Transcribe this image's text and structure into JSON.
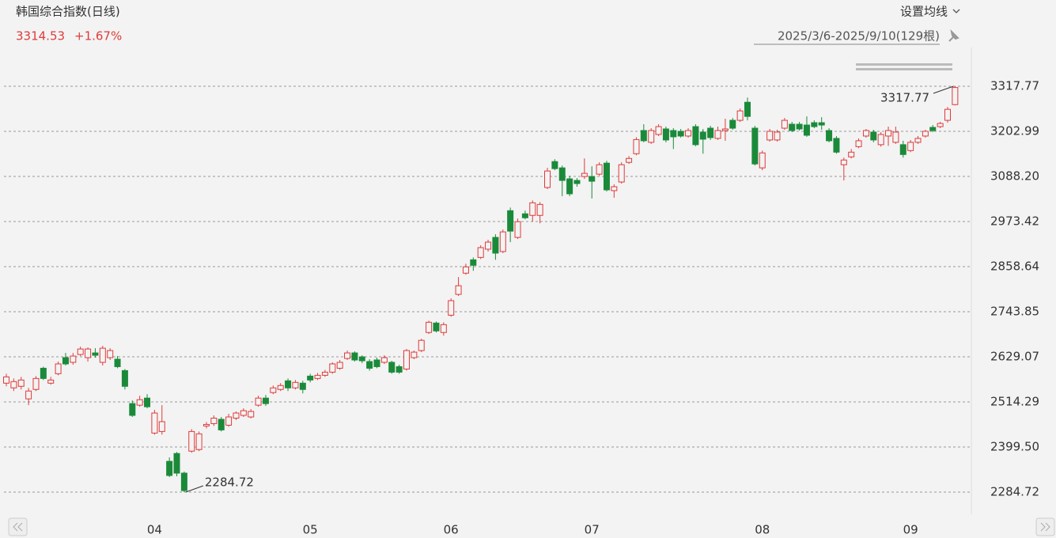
{
  "chart_data": {
    "type": "candlestick",
    "title": "韩国综合指数(日线)",
    "change": "+1.67%",
    "ma_setting": "设置均线",
    "range": "2025/3/6-2025/9/10(129根)",
    "up_color": "#e03a3a",
    "down_color": "#1a8a3a",
    "grid": true,
    "categories": [
      null,
      null,
      null,
      null,
      null,
      null,
      null,
      null,
      null,
      null,
      null,
      null,
      null,
      null,
      null,
      null,
      null,
      null,
      null,
      null,
      "04",
      null,
      null,
      null,
      null,
      null,
      null,
      null,
      null,
      null,
      null,
      null,
      null,
      null,
      null,
      null,
      null,
      null,
      null,
      null,
      null,
      "05",
      null,
      null,
      null,
      null,
      null,
      null,
      null,
      null,
      null,
      null,
      null,
      null,
      null,
      null,
      null,
      null,
      null,
      null,
      "06",
      null,
      null,
      null,
      null,
      null,
      null,
      null,
      null,
      null,
      null,
      null,
      null,
      null,
      null,
      null,
      null,
      null,
      null,
      "07",
      null,
      null,
      null,
      null,
      null,
      null,
      null,
      null,
      null,
      null,
      null,
      null,
      null,
      null,
      null,
      null,
      null,
      null,
      null,
      null,
      null,
      null,
      "08",
      null,
      null,
      null,
      null,
      null,
      null,
      null,
      null,
      null,
      null,
      null,
      null,
      null,
      null,
      null,
      null,
      null,
      null,
      null,
      "09",
      null,
      null,
      null,
      null,
      null,
      null
    ],
    "open": [
      2562,
      2550,
      2554,
      2522,
      2546,
      2600,
      2562,
      2586,
      2627,
      2615,
      2635,
      2627,
      2639,
      2615,
      2627,
      2623,
      2594,
      2510,
      2506,
      2524,
      2435,
      2439,
      2363,
      2383,
      2333,
      2389,
      2393,
      2453,
      2459,
      2470,
      2455,
      2473,
      2480,
      2476,
      2506,
      2524,
      2538,
      2546,
      2568,
      2550,
      2562,
      2580,
      2574,
      2582,
      2590,
      2600,
      2625,
      2639,
      2629,
      2617,
      2621,
      2615,
      2615,
      2604,
      2598,
      2627,
      2645,
      2691,
      2715,
      2691,
      2735,
      2788,
      2842,
      2876,
      2882,
      2903,
      2933,
      2897,
      3001,
      2933,
      2993,
      2989,
      2989,
      3060,
      3126,
      3110,
      3082,
      3078,
      3088,
      3088,
      3094,
      3122,
      3052,
      3074,
      3124,
      3146,
      3205,
      3175,
      3195,
      3209,
      3205,
      3203,
      3191,
      3215,
      3201,
      3211,
      3185,
      3205,
      3231,
      3231,
      3277,
      3211,
      3110,
      3181,
      3181,
      3211,
      3221,
      3221,
      3219,
      3225,
      3225,
      3205,
      3185,
      3118,
      3138,
      3164,
      3191,
      3201,
      3169,
      3191,
      3175,
      3169,
      3154,
      3175,
      3191,
      3213,
      3215,
      3231,
      3271
    ],
    "high": [
      2586,
      2574,
      2578,
      2550,
      2580,
      2604,
      2578,
      2617,
      2639,
      2639,
      2655,
      2653,
      2651,
      2657,
      2651,
      2631,
      2598,
      2518,
      2530,
      2534,
      2494,
      2506,
      2373,
      2387,
      2337,
      2445,
      2439,
      2463,
      2480,
      2476,
      2484,
      2490,
      2498,
      2496,
      2530,
      2532,
      2556,
      2562,
      2574,
      2570,
      2568,
      2586,
      2588,
      2596,
      2615,
      2621,
      2645,
      2643,
      2633,
      2623,
      2627,
      2633,
      2619,
      2609,
      2649,
      2645,
      2675,
      2721,
      2719,
      2717,
      2778,
      2832,
      2866,
      2882,
      2913,
      2927,
      2941,
      2953,
      3009,
      2981,
      3001,
      3027,
      3023,
      3110,
      3132,
      3116,
      3090,
      3084,
      3134,
      3114,
      3124,
      3128,
      3068,
      3124,
      3140,
      3188,
      3221,
      3211,
      3221,
      3215,
      3211,
      3209,
      3211,
      3221,
      3209,
      3217,
      3215,
      3235,
      3237,
      3261,
      3289,
      3217,
      3154,
      3209,
      3207,
      3237,
      3227,
      3227,
      3241,
      3231,
      3239,
      3211,
      3191,
      3136,
      3158,
      3185,
      3209,
      3207,
      3201,
      3215,
      3215,
      3179,
      3181,
      3191,
      3207,
      3219,
      3227,
      3265,
      3317.77
    ],
    "low": [
      2554,
      2542,
      2546,
      2506,
      2542,
      2570,
      2558,
      2582,
      2607,
      2609,
      2631,
      2617,
      2627,
      2607,
      2621,
      2600,
      2546,
      2476,
      2502,
      2498,
      2431,
      2431,
      2323,
      2325,
      2284.72,
      2385,
      2389,
      2447,
      2453,
      2439,
      2451,
      2468,
      2476,
      2472,
      2502,
      2504,
      2534,
      2542,
      2542,
      2546,
      2536,
      2564,
      2570,
      2578,
      2586,
      2596,
      2621,
      2617,
      2613,
      2594,
      2600,
      2611,
      2586,
      2586,
      2594,
      2623,
      2641,
      2687,
      2691,
      2683,
      2731,
      2784,
      2838,
      2848,
      2878,
      2897,
      2876,
      2893,
      2921,
      2929,
      2979,
      2973,
      2969,
      3056,
      3104,
      3038,
      3038,
      3062,
      3082,
      3032,
      3090,
      3050,
      3034,
      3070,
      3120,
      3142,
      3175,
      3171,
      3191,
      3175,
      3158,
      3187,
      3187,
      3165,
      3146,
      3181,
      3181,
      3179,
      3207,
      3227,
      3231,
      3116,
      3104,
      3177,
      3177,
      3207,
      3201,
      3205,
      3189,
      3211,
      3207,
      3175,
      3146,
      3078,
      3134,
      3160,
      3187,
      3175,
      3164,
      3166,
      3171,
      3136,
      3150,
      3171,
      3187,
      3201,
      3211,
      3225,
      3269
    ],
    "close": [
      2578,
      2566,
      2570,
      2542,
      2574,
      2574,
      2570,
      2611,
      2611,
      2631,
      2649,
      2649,
      2633,
      2651,
      2645,
      2604,
      2554,
      2480,
      2520,
      2502,
      2486,
      2464,
      2327,
      2333,
      2288.5,
      2439,
      2433,
      2457,
      2473,
      2443,
      2476,
      2486,
      2492,
      2490,
      2524,
      2510,
      2550,
      2556,
      2550,
      2564,
      2546,
      2570,
      2582,
      2590,
      2611,
      2615,
      2639,
      2621,
      2619,
      2600,
      2604,
      2627,
      2590,
      2590,
      2645,
      2641,
      2671,
      2717,
      2695,
      2711,
      2772,
      2810,
      2858,
      2862,
      2907,
      2921,
      2893,
      2947,
      2949,
      2973,
      2983,
      3021,
      3017,
      3102,
      3108,
      3078,
      3044,
      3070,
      3096,
      3076,
      3118,
      3054,
      3062,
      3118,
      3134,
      3182,
      3179,
      3205,
      3215,
      3181,
      3189,
      3191,
      3205,
      3169,
      3183,
      3187,
      3205,
      3209,
      3211,
      3255,
      3241,
      3120,
      3148,
      3203,
      3201,
      3231,
      3205,
      3209,
      3193,
      3215,
      3219,
      3179,
      3150,
      3130,
      3150,
      3179,
      3205,
      3181,
      3195,
      3205,
      3201,
      3144,
      3175,
      3185,
      3203,
      3205,
      3223,
      3259,
      3314.53
    ],
    "ylim": [
      2248.47,
      3366.08
    ],
    "yticks": [
      3317.77,
      3202.99,
      {
        "value": 3088.2,
        "label": "3088.20"
      },
      2973.42,
      2858.64,
      2743.85,
      2629.07,
      2514.29,
      {
        "value": 2399.5,
        "label": "2399.50"
      },
      2284.72
    ]
  }
}
